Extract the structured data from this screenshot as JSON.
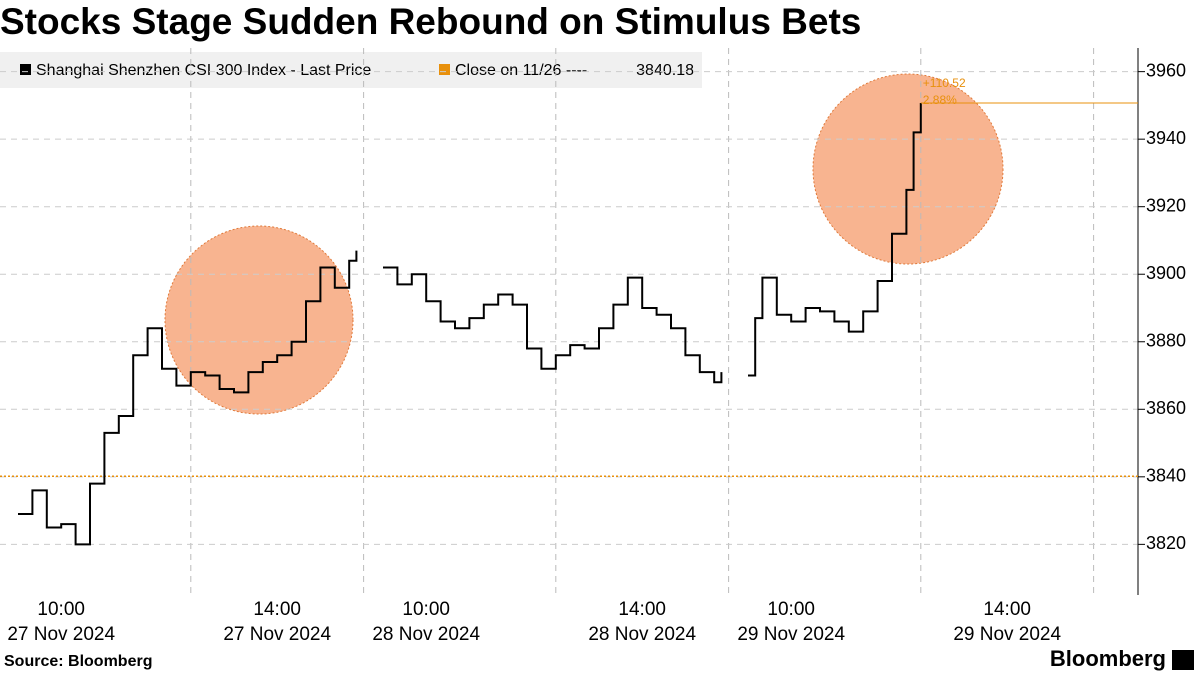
{
  "chart_data": {
    "type": "line",
    "title": "Stocks Stage Sudden Rebound on Stimulus Bets",
    "source": "Source: Bloomberg",
    "brand": "Bloomberg",
    "legend": {
      "series_label": "Shanghai Shenzhen CSI 300 Index - Last Price",
      "close_label": "Close on 11/26 ----"
    },
    "close_value": 3840.18,
    "close_color": "#e8900c",
    "annotations": [
      "+110.52",
      "2.88%"
    ],
    "ylim": [
      3805,
      3967
    ],
    "yticks": [
      3820,
      3840,
      3860,
      3880,
      3900,
      3920,
      3940,
      3960
    ],
    "grid": true,
    "xticks": [
      {
        "value": "27 Nov 2024 10:00",
        "label": [
          "10:00",
          "27 Nov 2024"
        ]
      },
      {
        "value": "27 Nov 2024 14:00",
        "label": [
          "14:00",
          "27 Nov 2024"
        ]
      },
      {
        "value": "28 Nov 2024 10:00",
        "label": [
          "10:00",
          "28 Nov 2024"
        ]
      },
      {
        "value": "28 Nov 2024 14:00",
        "label": [
          "14:00",
          "28 Nov 2024"
        ]
      },
      {
        "value": "29 Nov 2024 10:00",
        "label": [
          "10:00",
          "29 Nov 2024"
        ]
      },
      {
        "value": "29 Nov 2024 14:00",
        "label": [
          "14:00",
          "29 Nov 2024"
        ]
      }
    ],
    "series": [
      {
        "name": "Shanghai Shenzhen CSI 300 Index - Last Price",
        "color": "#000000",
        "x": [
          "27 Nov 2024 09:30",
          "27 Nov 2024 09:40",
          "27 Nov 2024 09:50",
          "27 Nov 2024 10:00",
          "27 Nov 2024 10:10",
          "27 Nov 2024 10:20",
          "27 Nov 2024 10:30",
          "27 Nov 2024 10:40",
          "27 Nov 2024 10:50",
          "27 Nov 2024 11:00",
          "27 Nov 2024 11:10",
          "27 Nov 2024 11:20",
          "27 Nov 2024 11:30",
          "27 Nov 2024 13:00",
          "27 Nov 2024 13:10",
          "27 Nov 2024 13:20",
          "27 Nov 2024 13:30",
          "27 Nov 2024 13:40",
          "27 Nov 2024 13:50",
          "27 Nov 2024 14:00",
          "27 Nov 2024 14:10",
          "27 Nov 2024 14:20",
          "27 Nov 2024 14:30",
          "27 Nov 2024 14:40",
          "27 Nov 2024 14:50",
          "27 Nov 2024 14:55",
          "28 Nov 2024 09:30",
          "28 Nov 2024 09:40",
          "28 Nov 2024 09:50",
          "28 Nov 2024 10:00",
          "28 Nov 2024 10:10",
          "28 Nov 2024 10:20",
          "28 Nov 2024 10:30",
          "28 Nov 2024 10:40",
          "28 Nov 2024 10:50",
          "28 Nov 2024 11:00",
          "28 Nov 2024 11:10",
          "28 Nov 2024 11:20",
          "28 Nov 2024 11:30",
          "28 Nov 2024 13:00",
          "28 Nov 2024 13:10",
          "28 Nov 2024 13:20",
          "28 Nov 2024 13:30",
          "28 Nov 2024 13:40",
          "28 Nov 2024 13:50",
          "28 Nov 2024 14:00",
          "28 Nov 2024 14:10",
          "28 Nov 2024 14:20",
          "28 Nov 2024 14:30",
          "28 Nov 2024 14:40",
          "28 Nov 2024 14:50",
          "28 Nov 2024 14:55",
          "29 Nov 2024 09:30",
          "29 Nov 2024 09:35",
          "29 Nov 2024 09:40",
          "29 Nov 2024 09:50",
          "29 Nov 2024 10:00",
          "29 Nov 2024 10:10",
          "29 Nov 2024 10:20",
          "29 Nov 2024 10:30",
          "29 Nov 2024 10:40",
          "29 Nov 2024 10:50",
          "29 Nov 2024 11:00",
          "29 Nov 2024 11:10",
          "29 Nov 2024 11:20",
          "29 Nov 2024 11:25",
          "29 Nov 2024 11:30"
        ],
        "values": [
          3829,
          3836,
          3825,
          3826,
          3820,
          3838,
          3853,
          3858,
          3876,
          3884,
          3872,
          3867,
          3869,
          3871,
          3870,
          3866,
          3865,
          3871,
          3874,
          3876,
          3880,
          3892,
          3902,
          3896,
          3904,
          3907,
          3902,
          3897,
          3900,
          3892,
          3886,
          3884,
          3887,
          3891,
          3894,
          3891,
          3878,
          3872,
          3874,
          3876,
          3879,
          3878,
          3884,
          3891,
          3899,
          3890,
          3888,
          3884,
          3876,
          3871,
          3868,
          3871,
          3870,
          3887,
          3899,
          3888,
          3886,
          3890,
          3889,
          3886,
          3883,
          3889,
          3898,
          3912,
          3925,
          3942,
          3950.7
        ]
      }
    ]
  }
}
